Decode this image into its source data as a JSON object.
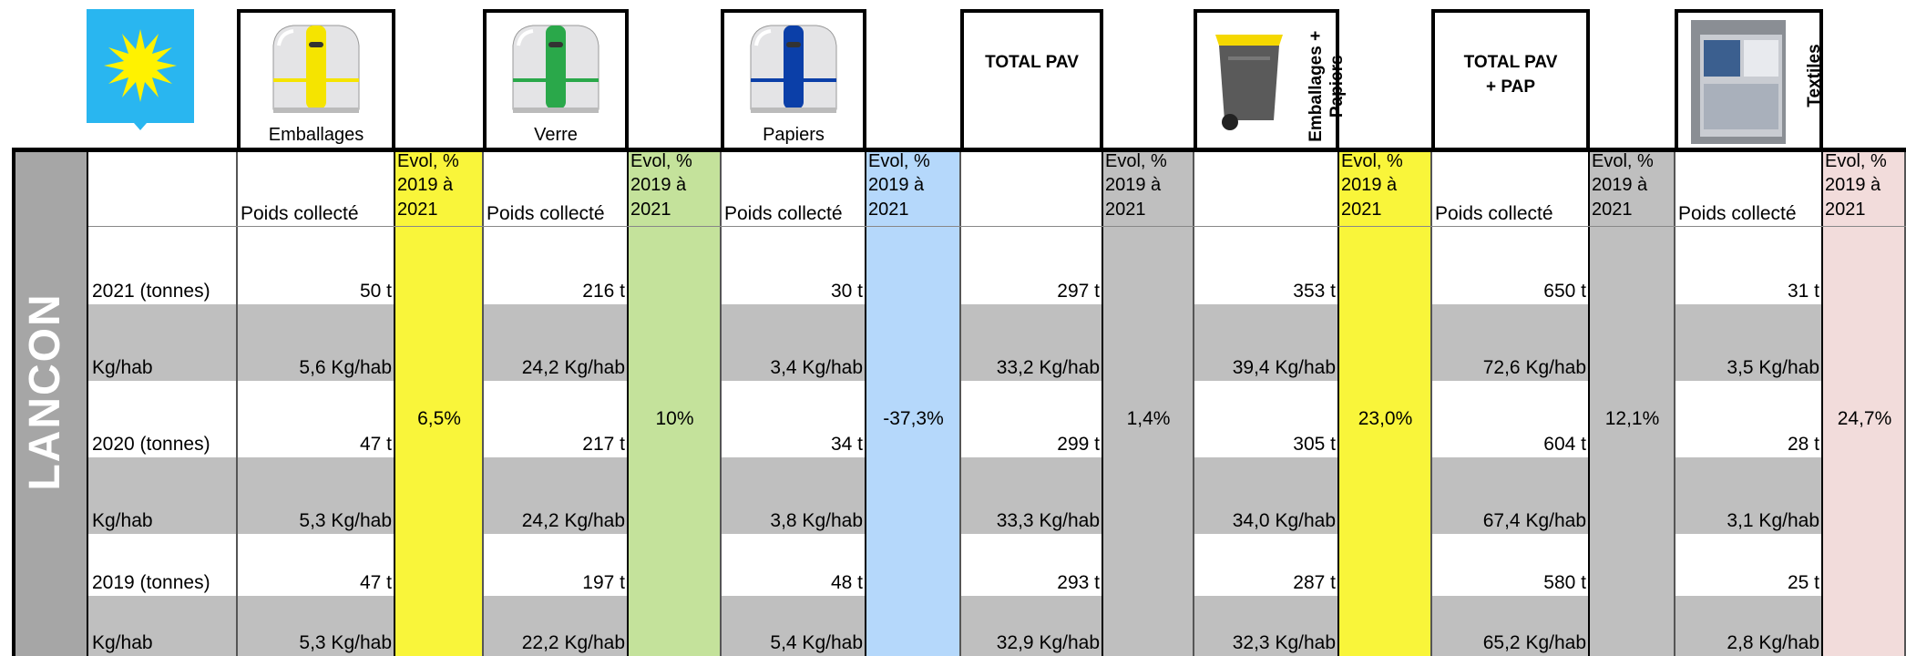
{
  "site": "LANCON",
  "columns": [
    {
      "header": "Emballages",
      "subheader": "Poids collecté",
      "evol_header": "Evol, % 2019 à 2021",
      "evol": "6,5%"
    },
    {
      "header": "Verre",
      "subheader": "Poids collecté",
      "evol_header": "Evol, % 2019 à 2021",
      "evol": "10%"
    },
    {
      "header": "Papiers",
      "subheader": "Poids collecté",
      "evol_header": "Evol, % 2019 à 2021",
      "evol": "-37,3%"
    },
    {
      "header": "TOTAL PAV",
      "evol_header": "Evol, % 2019 à 2021",
      "evol": "1,4%"
    },
    {
      "header": "Emballages + Papiers",
      "evol_header": "Evol, % 2019 à 2021",
      "evol": "23,0%"
    },
    {
      "header": "TOTAL PAV + PAP",
      "subheader": "Poids collecté",
      "evol_header": "Evol, % 2019 à 2021",
      "evol": "12,1%"
    },
    {
      "header": "Textiles",
      "subheader": "Poids collecté",
      "evol_header": "Evol, % 2019 à 2021",
      "evol": "24,7%"
    }
  ],
  "rows": [
    {
      "label": "2021 (tonnes)",
      "values": [
        "50 t",
        "216 t",
        "30 t",
        "297 t",
        "353 t",
        "650 t",
        "31 t"
      ]
    },
    {
      "label": "Kg/hab",
      "values": [
        "5,6 Kg/hab",
        "24,2 Kg/hab",
        "3,4 Kg/hab",
        "33,2 Kg/hab",
        "39,4 Kg/hab",
        "72,6 Kg/hab",
        "3,5 Kg/hab"
      ]
    },
    {
      "label": "2020 (tonnes)",
      "values": [
        "47 t",
        "217 t",
        "34 t",
        "299 t",
        "305 t",
        "604 t",
        "28 t"
      ]
    },
    {
      "label": "Kg/hab",
      "values": [
        "5,3 Kg/hab",
        "24,2 Kg/hab",
        "3,8 Kg/hab",
        "33,3 Kg/hab",
        "34,0 Kg/hab",
        "67,4 Kg/hab",
        "3,1 Kg/hab"
      ]
    },
    {
      "label": "2019 (tonnes)",
      "values": [
        "47 t",
        "197 t",
        "48 t",
        "293 t",
        "287 t",
        "580 t",
        "25 t"
      ]
    },
    {
      "label": "Kg/hab",
      "values": [
        "5,3 Kg/hab",
        "22,2 Kg/hab",
        "5,4 Kg/hab",
        "32,9 Kg/hab",
        "32,3 Kg/hab",
        "65,2 Kg/hab",
        "2,8 Kg/hab"
      ]
    }
  ]
}
